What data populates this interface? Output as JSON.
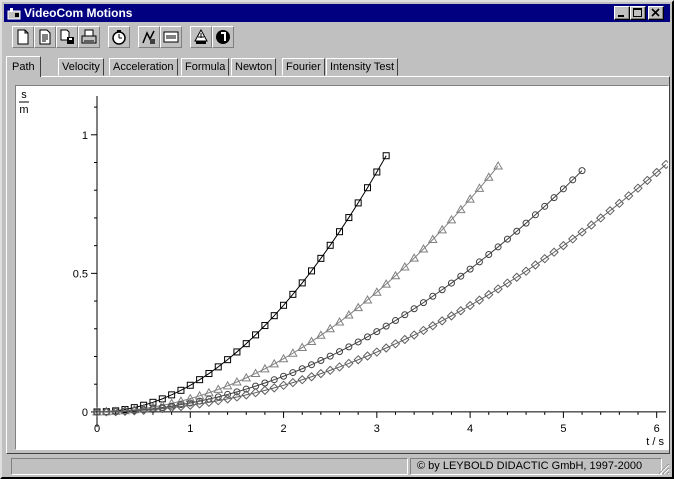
{
  "window": {
    "title": "VideoCom Motions"
  },
  "toolbar": {
    "buttons": [
      {
        "icon": "new-file-icon"
      },
      {
        "icon": "open-file-icon"
      },
      {
        "icon": "save-file-icon"
      },
      {
        "icon": "print-icon"
      },
      {
        "icon": "stopwatch-icon"
      },
      {
        "icon": "measurement-settings-icon"
      },
      {
        "icon": "display-settings-icon"
      },
      {
        "icon": "sign-icon"
      },
      {
        "icon": "help-icon"
      }
    ]
  },
  "tabs": [
    {
      "label": "Path",
      "active": true
    },
    {
      "label": "Velocity"
    },
    {
      "label": "Acceleration"
    },
    {
      "label": "Formula"
    },
    {
      "label": "Newton"
    },
    {
      "label": "Fourier"
    },
    {
      "label": "Intensity Test"
    }
  ],
  "status": {
    "left": "",
    "right": "© by LEYBOLD DIDACTIC GmbH, 1997-2000"
  },
  "chart_data": {
    "type": "scatter",
    "y_unit_top": "s",
    "y_unit_bottom": "m",
    "xlabel": "t / s",
    "xlim": [
      0,
      6.1
    ],
    "ylim": [
      -0.04,
      1.14
    ],
    "x_ticks": [
      "0",
      "1",
      "2",
      "3",
      "4",
      "5",
      "6"
    ],
    "y_ticks": [
      "0",
      "0.5",
      "1"
    ],
    "grid": false,
    "series": [
      {
        "marker": "square",
        "color": "#000000",
        "a": 0.0962,
        "dt": 0.1,
        "t_end": 3.1
      },
      {
        "marker": "triangle",
        "color": "#808080",
        "a": 0.048,
        "dt": 0.1,
        "t_end": 4.3
      },
      {
        "marker": "circle",
        "color": "#404040",
        "a": 0.0322,
        "dt": 0.1,
        "t_end": 5.2
      },
      {
        "marker": "diamond",
        "color": "#606060",
        "a": 0.024,
        "dt": 0.1,
        "t_end": 6.1
      }
    ],
    "formula": "y = a * t^2"
  }
}
